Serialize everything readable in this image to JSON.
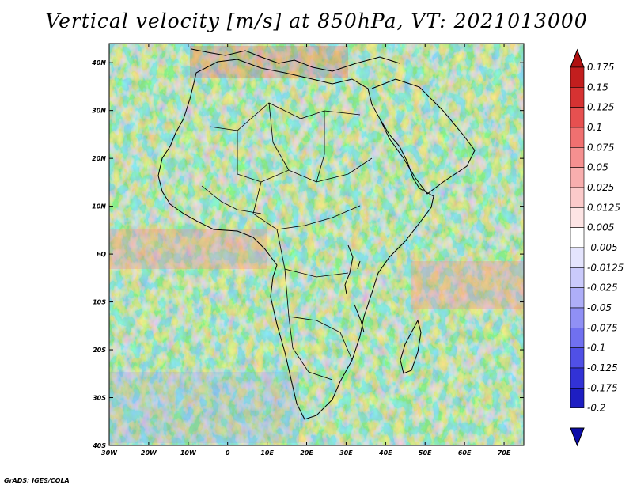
{
  "title": "Vertical velocity [m/s] at 850hPa, VT: 2021013000",
  "credit": "GrADS: IGES/COLA",
  "map": {
    "variable": "Vertical velocity",
    "units": "m/s",
    "level": "850hPa",
    "valid_time": "2021013000",
    "lon_range": [
      -30,
      75
    ],
    "lat_range": [
      -40,
      44
    ],
    "lon_ticks": [
      {
        "value": -30,
        "label": "30W"
      },
      {
        "value": -20,
        "label": "20W"
      },
      {
        "value": -10,
        "label": "10W"
      },
      {
        "value": 0,
        "label": "0"
      },
      {
        "value": 10,
        "label": "10E"
      },
      {
        "value": 20,
        "label": "20E"
      },
      {
        "value": 30,
        "label": "30E"
      },
      {
        "value": 40,
        "label": "40E"
      },
      {
        "value": 50,
        "label": "50E"
      },
      {
        "value": 60,
        "label": "60E"
      },
      {
        "value": 70,
        "label": "70E"
      }
    ],
    "lat_ticks": [
      {
        "value": 40,
        "label": "40N"
      },
      {
        "value": 30,
        "label": "30N"
      },
      {
        "value": 20,
        "label": "20N"
      },
      {
        "value": 10,
        "label": "10N"
      },
      {
        "value": 0,
        "label": "EQ"
      },
      {
        "value": -10,
        "label": "10S"
      },
      {
        "value": -20,
        "label": "20S"
      },
      {
        "value": -30,
        "label": "30S"
      },
      {
        "value": -40,
        "label": "40S"
      }
    ]
  },
  "colorbar": {
    "labels": [
      "0.175",
      "0.15",
      "0.125",
      "0.1",
      "0.075",
      "0.05",
      "0.025",
      "0.0125",
      "0.005",
      "-0.005",
      "-0.0125",
      "-0.025",
      "-0.05",
      "-0.075",
      "-0.1",
      "-0.125",
      "-0.175",
      "-0.2"
    ],
    "colors": [
      "#b01010",
      "#c21e1e",
      "#d63232",
      "#e65050",
      "#f07070",
      "#f59090",
      "#f8aeae",
      "#fbcaca",
      "#fde4e4",
      "#ffffff",
      "#e4e4fd",
      "#cacafb",
      "#aeaef8",
      "#9090f5",
      "#7070f0",
      "#5050e6",
      "#3232d6",
      "#1e1ec2",
      "#0c0ca8"
    ]
  }
}
